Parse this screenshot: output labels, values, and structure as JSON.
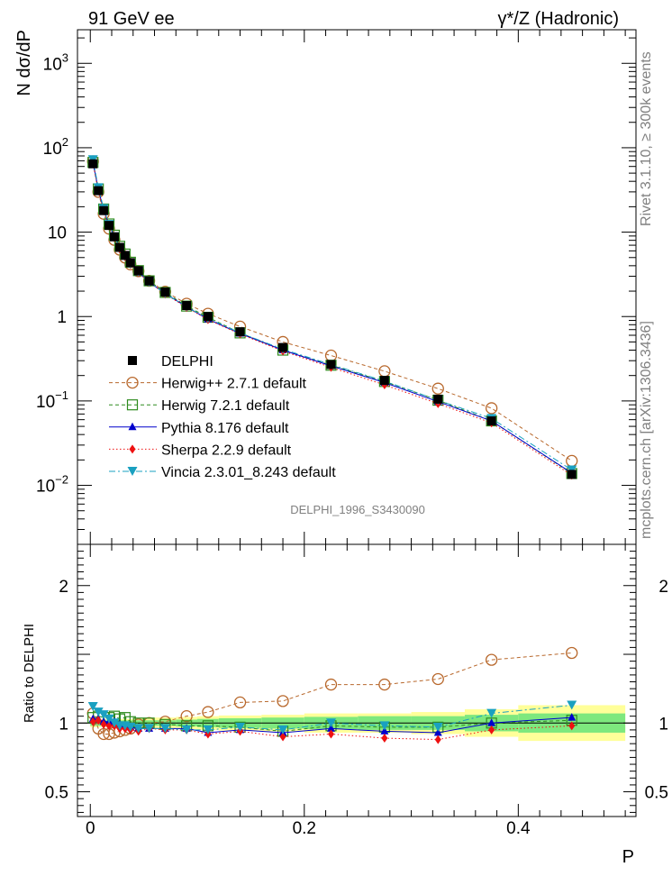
{
  "header": {
    "left_title": "91 GeV ee",
    "right_title": "γ*/Z (Hadronic)",
    "side_label_top": "Rivet 3.1.10, ≥ 300k events",
    "side_label_bottom": "mcplots.cern.ch [arXiv:1306.3436]",
    "watermark": "DELPHI_1996_S3430090"
  },
  "colors": {
    "data": "#000000",
    "herwigpp": "#b8682c",
    "herwig7": "#2e8b1e",
    "pythia": "#0000cc",
    "sherpa": "#ee1111",
    "vincia": "#1aa0c0",
    "band_inner": "#7ee87e",
    "band_outer": "#ffff99"
  },
  "chart_data": [
    {
      "type": "line",
      "panel": "main",
      "ylabel": "N dσ/dP",
      "yscale": "log",
      "ylim": [
        0.002,
        2500
      ],
      "xlim": [
        -0.012,
        0.51
      ],
      "ytick_labels": [
        {
          "value": 0.01,
          "base": "10",
          "exp": "−2"
        },
        {
          "value": 0.1,
          "base": "10",
          "exp": "−1"
        },
        {
          "value": 1,
          "base": "1",
          "exp": ""
        },
        {
          "value": 10,
          "base": "10",
          "exp": ""
        },
        {
          "value": 100,
          "base": "10",
          "exp": "2"
        },
        {
          "value": 1000,
          "base": "10",
          "exp": "3"
        }
      ],
      "x": [
        0.0025,
        0.0075,
        0.0125,
        0.0175,
        0.0225,
        0.0275,
        0.0325,
        0.0375,
        0.045,
        0.055,
        0.07,
        0.09,
        0.11,
        0.14,
        0.18,
        0.225,
        0.275,
        0.325,
        0.375,
        0.45
      ],
      "series": [
        {
          "name": "DELPHI",
          "key": "data",
          "values": [
            64.5,
            31.0,
            18.0,
            12.0,
            8.8,
            6.6,
            5.3,
            4.35,
            3.5,
            2.65,
            1.95,
            1.35,
            1.0,
            0.66,
            0.43,
            0.27,
            0.175,
            0.105,
            0.058,
            0.0135
          ]
        },
        {
          "name": "Herwig++ 2.7.1 default",
          "key": "herwigpp",
          "values": [
            69.0,
            30.0,
            16.5,
            11.0,
            8.1,
            6.2,
            5.0,
            4.15,
            3.45,
            2.65,
            1.97,
            1.42,
            1.08,
            0.76,
            0.5,
            0.345,
            0.225,
            0.14,
            0.082,
            0.0195
          ]
        },
        {
          "name": "Herwig 7.2.1 default",
          "key": "herwig7",
          "values": [
            67.0,
            32.5,
            18.8,
            12.5,
            9.2,
            6.8,
            5.5,
            4.4,
            3.5,
            2.65,
            1.93,
            1.33,
            0.98,
            0.64,
            0.4,
            0.265,
            0.17,
            0.102,
            0.058,
            0.0138
          ]
        },
        {
          "name": "Pythia 8.176 default",
          "key": "pythia",
          "values": [
            66.5,
            32.0,
            18.2,
            12.1,
            8.9,
            6.5,
            5.2,
            4.2,
            3.35,
            2.55,
            1.88,
            1.3,
            0.93,
            0.63,
            0.4,
            0.26,
            0.165,
            0.098,
            0.058,
            0.014
          ]
        },
        {
          "name": "Sherpa 2.2.9 default",
          "key": "sherpa",
          "values": [
            65.0,
            31.5,
            17.8,
            11.8,
            8.6,
            6.3,
            5.1,
            4.15,
            3.3,
            2.55,
            1.85,
            1.28,
            0.92,
            0.62,
            0.39,
            0.25,
            0.155,
            0.093,
            0.055,
            0.0132
          ]
        },
        {
          "name": "Vincia 2.3.01_8.243 default",
          "key": "vincia",
          "values": [
            72.0,
            33.5,
            19.0,
            12.3,
            8.8,
            6.5,
            5.2,
            4.2,
            3.35,
            2.55,
            1.87,
            1.3,
            0.95,
            0.64,
            0.41,
            0.27,
            0.172,
            0.102,
            0.062,
            0.0152
          ]
        }
      ]
    },
    {
      "type": "line",
      "panel": "ratio",
      "ylabel": "Ratio to DELPHI",
      "ylim": [
        0.32,
        2.3
      ],
      "xlim": [
        -0.012,
        0.51
      ],
      "xlabel": "P",
      "ytick_labels": [
        "0.5",
        "1",
        "2"
      ],
      "ytick_values": [
        0.5,
        1,
        2
      ],
      "xtick_labels": [
        "0",
        "0.2",
        "0.4"
      ],
      "xtick_values": [
        0,
        0.2,
        0.4
      ],
      "x": [
        0.0025,
        0.0075,
        0.0125,
        0.0175,
        0.0225,
        0.0275,
        0.0325,
        0.0375,
        0.045,
        0.055,
        0.07,
        0.09,
        0.11,
        0.14,
        0.18,
        0.225,
        0.275,
        0.325,
        0.375,
        0.45
      ],
      "bin_edges": [
        0,
        0.005,
        0.01,
        0.015,
        0.02,
        0.025,
        0.03,
        0.035,
        0.04,
        0.05,
        0.06,
        0.08,
        0.1,
        0.12,
        0.16,
        0.2,
        0.25,
        0.3,
        0.35,
        0.4,
        0.5
      ],
      "band_inner_halfwidth": [
        0.02,
        0.02,
        0.02,
        0.02,
        0.02,
        0.02,
        0.02,
        0.02,
        0.02,
        0.02,
        0.02,
        0.025,
        0.03,
        0.035,
        0.04,
        0.045,
        0.05,
        0.05,
        0.06,
        0.07
      ],
      "band_outer_halfwidth": [
        0.03,
        0.03,
        0.03,
        0.03,
        0.03,
        0.03,
        0.03,
        0.03,
        0.035,
        0.035,
        0.04,
        0.045,
        0.05,
        0.055,
        0.06,
        0.07,
        0.07,
        0.08,
        0.1,
        0.13
      ],
      "series": [
        {
          "name": "Herwig++ 2.7.1 default",
          "key": "herwigpp",
          "values": [
            1.07,
            0.96,
            0.92,
            0.92,
            0.93,
            0.94,
            0.95,
            0.96,
            0.99,
            1.0,
            1.01,
            1.05,
            1.08,
            1.15,
            1.16,
            1.28,
            1.28,
            1.32,
            1.46,
            1.51
          ]
        },
        {
          "name": "Herwig 7.2.1 default",
          "key": "herwig7",
          "values": [
            1.04,
            1.05,
            1.04,
            1.04,
            1.05,
            1.03,
            1.04,
            1.01,
            1.0,
            1.0,
            0.99,
            0.98,
            0.98,
            0.97,
            0.94,
            0.98,
            0.97,
            0.97,
            1.0,
            1.02
          ]
        },
        {
          "name": "Pythia 8.176 default",
          "key": "pythia",
          "values": [
            1.03,
            1.03,
            1.01,
            1.01,
            1.01,
            0.99,
            0.98,
            0.97,
            0.96,
            0.96,
            0.96,
            0.96,
            0.93,
            0.95,
            0.93,
            0.96,
            0.94,
            0.93,
            1.0,
            1.04
          ]
        },
        {
          "name": "Sherpa 2.2.9 default",
          "key": "sherpa",
          "values": [
            1.01,
            1.02,
            0.99,
            0.98,
            0.98,
            0.96,
            0.96,
            0.95,
            0.94,
            0.96,
            0.95,
            0.95,
            0.92,
            0.94,
            0.9,
            0.92,
            0.89,
            0.88,
            0.95,
            0.98
          ]
        },
        {
          "name": "Vincia 2.3.01_8.243 default",
          "key": "vincia",
          "values": [
            1.12,
            1.08,
            1.06,
            1.03,
            1.0,
            0.98,
            0.98,
            0.97,
            0.96,
            0.96,
            0.96,
            0.95,
            0.95,
            0.97,
            0.95,
            1.0,
            0.98,
            0.97,
            1.07,
            1.13
          ]
        }
      ]
    }
  ]
}
